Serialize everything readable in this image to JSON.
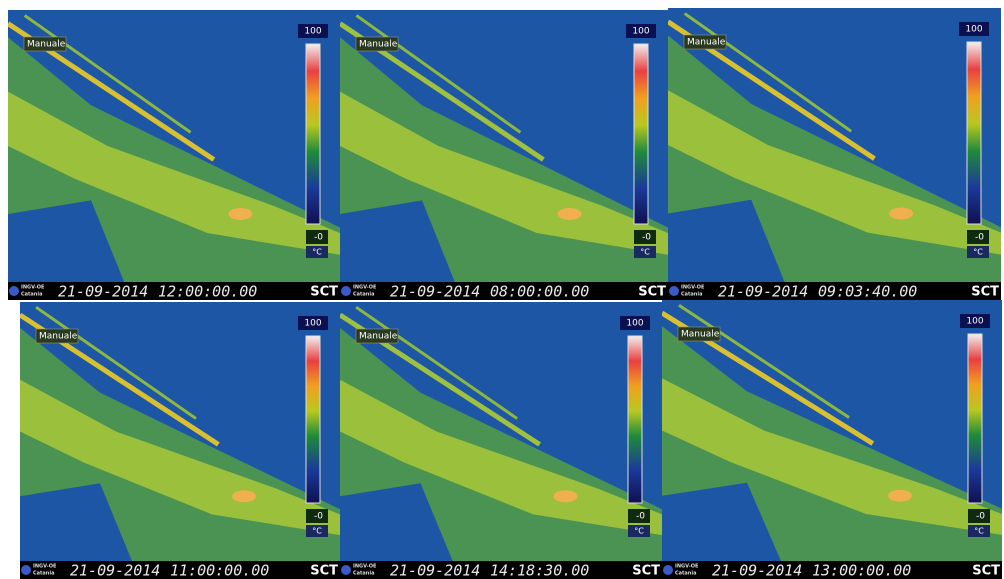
{
  "panels": [
    {
      "mode": "Manuale",
      "scale_max": "100",
      "scale_min": "-0",
      "unit": "°C",
      "logo": [
        "INGV-OE",
        "Catania"
      ],
      "date": "21-09-2014",
      "time": "12:00:00.00",
      "camera": "SCT"
    },
    {
      "mode": "Manuale",
      "scale_max": "100",
      "scale_min": "-0",
      "unit": "°C",
      "logo": [
        "INGV-OE",
        "Catania"
      ],
      "date": "21-09-2014",
      "time": "08:00:00.00",
      "camera": "SCT"
    },
    {
      "mode": "Manuale",
      "scale_max": "100",
      "scale_min": "-0",
      "unit": "°C",
      "logo": [
        "INGV-OE",
        "Catania"
      ],
      "date": "21-09-2014",
      "time": "09:03:40.00",
      "camera": "SCT"
    },
    {
      "mode": "Manuale",
      "scale_max": "100",
      "scale_min": "-0",
      "unit": "°C",
      "logo": [
        "INGV-OE",
        "Catania"
      ],
      "date": "21-09-2014",
      "time": "11:00:00.00",
      "camera": "SCT"
    },
    {
      "mode": "Manuale",
      "scale_max": "100",
      "scale_min": "-0",
      "unit": "°C",
      "logo": [
        "INGV-OE",
        "Catania"
      ],
      "date": "21-09-2014",
      "time": "14:18:30.00",
      "camera": "SCT"
    },
    {
      "mode": "Manuale",
      "scale_max": "100",
      "scale_min": "-0",
      "unit": "°C",
      "logo": [
        "INGV-OE",
        "Catania"
      ],
      "date": "21-09-2014",
      "time": "13:00:00.00",
      "camera": "SCT"
    }
  ]
}
